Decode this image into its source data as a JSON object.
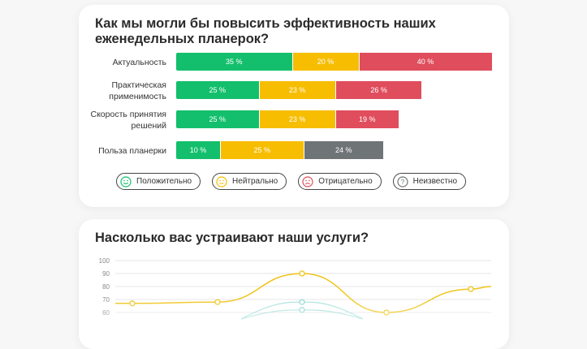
{
  "chart_data": [
    {
      "type": "bar",
      "stacked": true,
      "orientation": "horizontal",
      "title": "Как мы могли бы повысить эффективность наших еженедельных планерок?",
      "categories": [
        "Актуальность",
        "Практическая применимость",
        "Скорость принятия решений",
        "Польза планерки"
      ],
      "rows": [
        {
          "label": "Актуальность",
          "segments": [
            {
              "key": "pos",
              "value": 35,
              "text": "35 %"
            },
            {
              "key": "neu",
              "value": 20,
              "text": "20 %"
            },
            {
              "key": "neg",
              "value": 40,
              "text": "40 %"
            }
          ]
        },
        {
          "label": "Практическая применимость",
          "segments": [
            {
              "key": "pos",
              "value": 25,
              "text": "25 %"
            },
            {
              "key": "neu",
              "value": 23,
              "text": "23 %"
            },
            {
              "key": "neg",
              "value": 26,
              "text": "26 %"
            }
          ]
        },
        {
          "label": "Скорость принятия решений",
          "segments": [
            {
              "key": "pos",
              "value": 25,
              "text": "25 %"
            },
            {
              "key": "neu",
              "value": 23,
              "text": "23 %"
            },
            {
              "key": "neg",
              "value": 19,
              "text": "19 %"
            }
          ]
        },
        {
          "label": "Польза планерки",
          "segments": [
            {
              "key": "pos",
              "value": 10,
              "text": "10 %"
            },
            {
              "key": "neu",
              "value": 25,
              "text": "25 %"
            },
            {
              "key": "unk",
              "value": 24,
              "text": "24 %"
            }
          ]
        }
      ],
      "legend": [
        {
          "key": "pos",
          "label": "Положительно",
          "icon": "smile-icon",
          "color": "#13bf6c"
        },
        {
          "key": "neu",
          "label": "Нейтрально",
          "icon": "neutral-face-icon",
          "color": "#f7bd00"
        },
        {
          "key": "neg",
          "label": "Отрицательно",
          "icon": "sad-face-icon",
          "color": "#e04d5d"
        },
        {
          "key": "unk",
          "label": "Неизвестно",
          "icon": "question-icon",
          "color": "#6f7477"
        }
      ],
      "legend_position": "bottom"
    },
    {
      "type": "line",
      "title": "Насколько вас устраивают наши услуги?",
      "yticks": [
        100,
        90,
        80,
        70,
        60
      ],
      "ylim": [
        60,
        100
      ],
      "grid": true,
      "series": [
        {
          "color": "#f0c419",
          "values": [
            67,
            68,
            90,
            60,
            78
          ]
        },
        {
          "color": "#8fd8d2",
          "values": [
            null,
            null,
            68,
            null,
            null
          ]
        },
        {
          "color": "#8fd8d2",
          "values": [
            null,
            null,
            62,
            null,
            null
          ]
        }
      ]
    }
  ]
}
